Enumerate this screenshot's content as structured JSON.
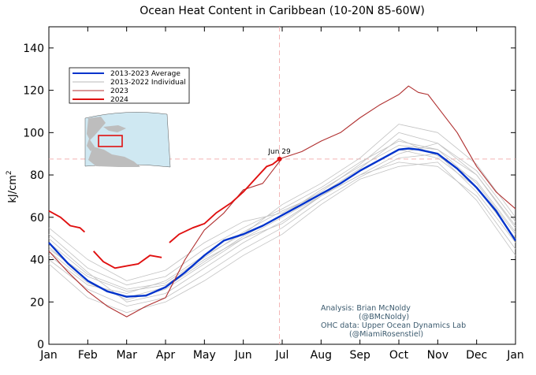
{
  "chart_data": {
    "type": "line",
    "title": "Ocean Heat Content in Caribbean (10-20N 85-60W)",
    "ylabel": "kJ/cm",
    "ylabel_superscript": "2",
    "xlabel": "",
    "ylim": [
      0,
      150
    ],
    "yticks": [
      0,
      20,
      40,
      60,
      80,
      100,
      120,
      140
    ],
    "xlim": [
      0,
      12
    ],
    "x_tick_labels": [
      "Jan",
      "Feb",
      "Mar",
      "Apr",
      "May",
      "Jun",
      "Jul",
      "Aug",
      "Sep",
      "Oct",
      "Nov",
      "Dec",
      "Jan"
    ],
    "grid": false,
    "legend": {
      "placement": "top-left",
      "entries": [
        {
          "label": "2013-2023 Average",
          "color": "#0033cc"
        },
        {
          "label": "2013-2022 Individual",
          "color": "#b8b8b8"
        },
        {
          "label": "2023",
          "color": "#b03030"
        },
        {
          "label": "2024",
          "color": "#e01010"
        }
      ]
    },
    "reference_lines": {
      "x_month": 5.93,
      "y_value": 87.5
    },
    "marker": {
      "label": "Jun 29",
      "x_month": 5.93,
      "y_value": 87.5
    },
    "series": [
      {
        "name": "2013-2023 Average",
        "color": "#0033cc",
        "x": [
          0,
          0.5,
          1,
          1.5,
          2,
          2.5,
          3,
          3.5,
          4,
          4.5,
          5,
          5.5,
          6,
          6.5,
          7,
          7.5,
          8,
          8.5,
          9,
          9.25,
          9.5,
          10,
          10.5,
          11,
          11.5,
          12
        ],
        "values": [
          48,
          38,
          30,
          25,
          22.5,
          23,
          27,
          34,
          42,
          49,
          52,
          56,
          61,
          66,
          71,
          76,
          82,
          87,
          92,
          92.5,
          92,
          90,
          83,
          74,
          63,
          49
        ]
      },
      {
        "name": "2023",
        "color": "#b03030",
        "x": [
          0,
          0.5,
          1,
          1.5,
          2,
          2.5,
          3,
          3.5,
          4,
          4.5,
          5,
          5.5,
          6,
          6.5,
          7,
          7.5,
          8,
          8.5,
          9,
          9.25,
          9.5,
          9.75,
          10,
          10.5,
          11,
          11.5,
          12
        ],
        "values": [
          44,
          34,
          25,
          18,
          13,
          18,
          22,
          40,
          54,
          62,
          73,
          76,
          88,
          91,
          96,
          100,
          107,
          113,
          118,
          122,
          119,
          118,
          112,
          100,
          84,
          72,
          64
        ]
      },
      {
        "name": "2024",
        "color": "#e01010",
        "segments": [
          {
            "x": [
              0,
              0.3,
              0.55,
              0.8,
              0.92
            ],
            "values": [
              63,
              60,
              56,
              55,
              53
            ]
          },
          {
            "x": [
              1.15,
              1.4,
              1.7,
              2.0,
              2.3,
              2.6,
              2.9
            ],
            "values": [
              44,
              39,
              36,
              37,
              38,
              42,
              41
            ]
          },
          {
            "x": [
              3.1,
              3.35,
              3.7,
              4.0,
              4.3,
              4.7,
              5.0,
              5.3,
              5.6,
              5.75,
              5.93
            ],
            "values": [
              48,
              52,
              55,
              57,
              62,
              67,
              72,
              78,
              84,
              85,
              87.5
            ]
          }
        ]
      },
      {
        "name": "2013-2022 Individual",
        "color": "#c2c2c2",
        "x": [
          0,
          1,
          2,
          3,
          4,
          5,
          6,
          7,
          8,
          9,
          10,
          11,
          12
        ],
        "values": [
          45,
          32,
          25,
          28,
          40,
          50,
          60,
          70,
          80,
          90,
          95,
          80,
          55
        ]
      },
      {
        "color": "#c2c2c2",
        "x": [
          0,
          1,
          2,
          3,
          4,
          5,
          6,
          7,
          8,
          9,
          10,
          11,
          12
        ],
        "values": [
          40,
          26,
          18,
          22,
          33,
          45,
          55,
          68,
          79,
          88,
          90,
          72,
          48
        ]
      },
      {
        "color": "#c2c2c2",
        "x": [
          0,
          1,
          2,
          3,
          4,
          5,
          6,
          7,
          8,
          9,
          10,
          11,
          12
        ],
        "values": [
          52,
          36,
          28,
          32,
          45,
          55,
          64,
          74,
          86,
          96,
          92,
          76,
          52
        ]
      },
      {
        "color": "#c2c2c2",
        "x": [
          0,
          1,
          2,
          3,
          4,
          5,
          6,
          7,
          8,
          9,
          10,
          11,
          12
        ],
        "values": [
          38,
          22,
          15,
          20,
          30,
          42,
          52,
          66,
          78,
          84,
          86,
          68,
          42
        ]
      },
      {
        "color": "#c2c2c2",
        "x": [
          0,
          1,
          2,
          3,
          4,
          5,
          6,
          7,
          8,
          9,
          10,
          11,
          12
        ],
        "values": [
          55,
          40,
          30,
          35,
          48,
          58,
          62,
          72,
          85,
          100,
          95,
          82,
          58
        ]
      },
      {
        "color": "#c2c2c2",
        "x": [
          0,
          1,
          2,
          3,
          4,
          5,
          6,
          7,
          8,
          9,
          10,
          11,
          12
        ],
        "values": [
          46,
          30,
          21,
          26,
          38,
          50,
          57,
          70,
          82,
          92,
          88,
          74,
          50
        ]
      },
      {
        "color": "#c2c2c2",
        "x": [
          0,
          1,
          2,
          3,
          4,
          5,
          6,
          7,
          8,
          9,
          10,
          11,
          12
        ],
        "values": [
          42,
          28,
          24,
          30,
          42,
          52,
          66,
          76,
          88,
          104,
          100,
          85,
          60
        ]
      },
      {
        "color": "#c2c2c2",
        "x": [
          0,
          1,
          2,
          3,
          4,
          5,
          6,
          7,
          8,
          9,
          10,
          11,
          12
        ],
        "values": [
          50,
          34,
          20,
          24,
          36,
          48,
          58,
          70,
          80,
          86,
          84,
          70,
          45
        ]
      },
      {
        "color": "#c2c2c2",
        "x": [
          0,
          1,
          2,
          3,
          4,
          5,
          6,
          7,
          8,
          9,
          10,
          11,
          12
        ],
        "values": [
          44,
          29,
          22,
          27,
          39,
          51,
          61,
          73,
          84,
          94,
          92,
          80,
          56
        ]
      },
      {
        "color": "#c2c2c2",
        "x": [
          0,
          1,
          2,
          3,
          4,
          5,
          6,
          7,
          8,
          9,
          10,
          11,
          12
        ],
        "values": [
          48,
          33,
          26,
          29,
          41,
          53,
          63,
          71,
          83,
          97,
          89,
          77,
          53
        ]
      }
    ],
    "annotations": [
      "Analysis: Brian McNoldy",
      "(@BMcNoldy)",
      "OHC data: Upper Ocean Dynamics Lab",
      "(@MiamiRosenstiel)"
    ],
    "inset_map": {
      "description_region": "Caribbean",
      "box_color": "#e01010"
    }
  }
}
